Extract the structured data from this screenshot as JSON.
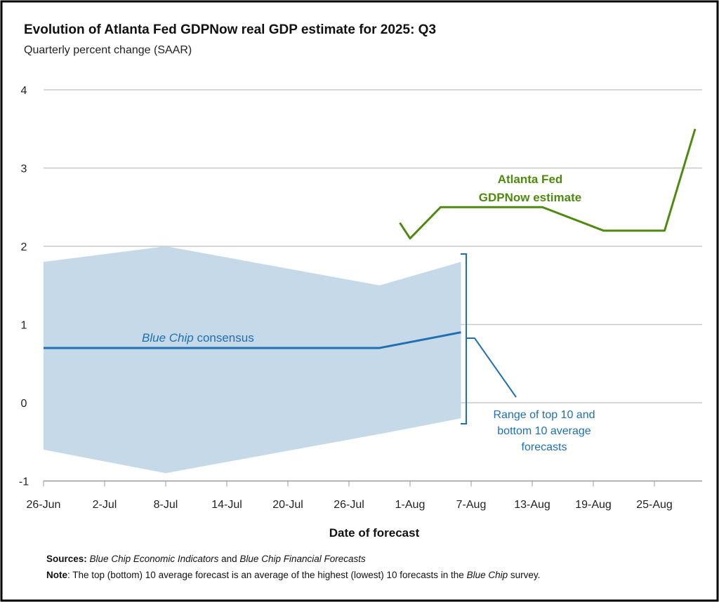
{
  "chart_data": {
    "type": "line",
    "title": "Evolution of Atlanta Fed GDPNow real GDP estimate for 2025: Q3",
    "subtitle": "Quarterly percent change (SAAR)",
    "xlabel": "Date of forecast",
    "ylabel": "",
    "ylim": [
      -1,
      4
    ],
    "yticks": [
      "4",
      "3",
      "2",
      "1",
      "0",
      "-1"
    ],
    "ytick_values": [
      4,
      3,
      2,
      1,
      0,
      -1
    ],
    "start_date": "2025-06-26",
    "xticks": [
      "26-Jun",
      "2-Jul",
      "8-Jul",
      "14-Jul",
      "20-Jul",
      "26-Jul",
      "1-Aug",
      "7-Aug",
      "13-Aug",
      "19-Aug",
      "25-Aug"
    ],
    "grid": true,
    "series": [
      {
        "name": "GDPNow",
        "label_line1": "Atlanta Fed",
        "label_line2": "GDPNow estimate",
        "color": "#4f8a10",
        "points": [
          {
            "date": "2025-07-31",
            "value": 2.3
          },
          {
            "date": "2025-08-01",
            "value": 2.1
          },
          {
            "date": "2025-08-04",
            "value": 2.5
          },
          {
            "date": "2025-08-14",
            "value": 2.5
          },
          {
            "date": "2025-08-20",
            "value": 2.2
          },
          {
            "date": "2025-08-26",
            "value": 2.2
          },
          {
            "date": "2025-08-29",
            "value": 3.5
          }
        ]
      },
      {
        "name": "Blue Chip consensus",
        "label_italic": "Blue Chip",
        "label_rest": " consensus",
        "color": "#1f6fb2",
        "points": [
          {
            "date": "2025-06-26",
            "value": 0.7
          },
          {
            "date": "2025-07-29",
            "value": 0.7
          },
          {
            "date": "2025-08-06",
            "value": 0.9
          }
        ]
      }
    ],
    "band": {
      "name": "Range of top 10 and bottom 10 average forecasts",
      "label_lines": [
        "Range of top 10 and",
        "bottom 10 average",
        "forecasts"
      ],
      "color": "#c5d9e8",
      "points": [
        {
          "date": "2025-06-26",
          "high": 1.8,
          "low": -0.6
        },
        {
          "date": "2025-07-08",
          "high": 2.0,
          "low": -0.9
        },
        {
          "date": "2025-07-29",
          "high": 1.5,
          "low": -0.4
        },
        {
          "date": "2025-08-06",
          "high": 1.8,
          "low": -0.2
        }
      ]
    },
    "footnotes": {
      "sources_label": "Sources:",
      "sources_italic1": "Blue Chip Economic Indicators",
      "sources_and": " and ",
      "sources_italic2": "Blue Chip Financial Forecasts",
      "note_label": "Note",
      "note_text1": ": The top (bottom) 10 average forecast is an average of the highest (lowest) 10 forecasts in the ",
      "note_italic": "Blue Chip",
      "note_text2": " survey."
    }
  }
}
